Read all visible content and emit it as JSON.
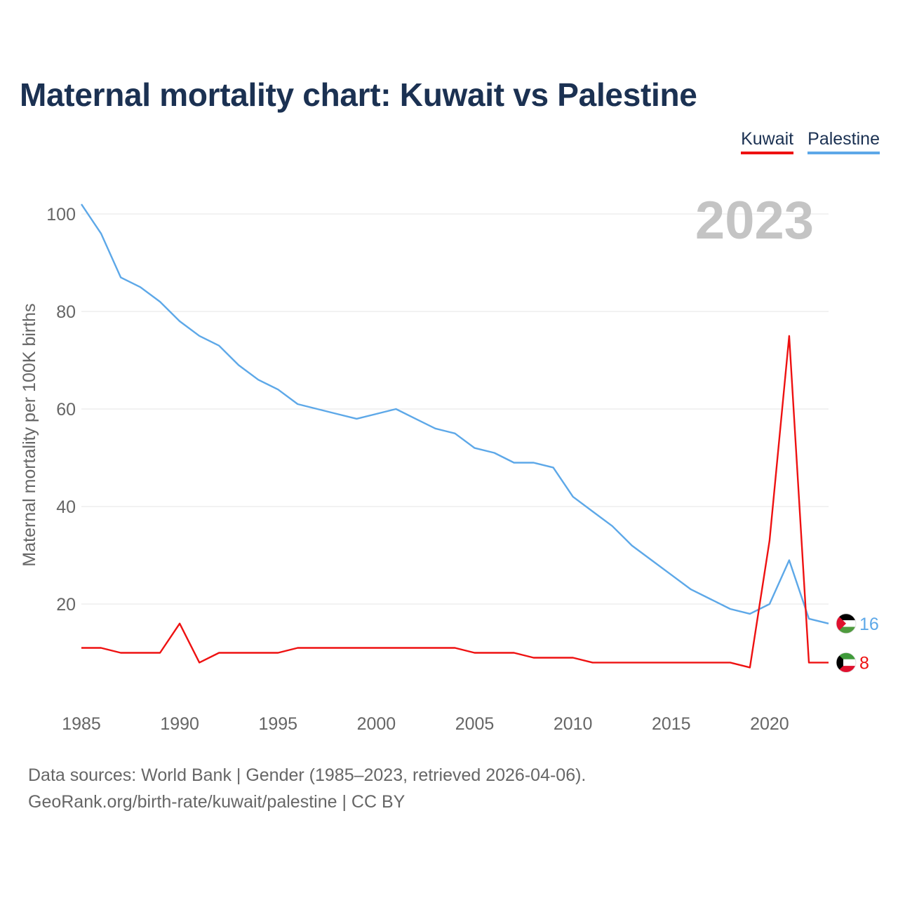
{
  "title": "Maternal mortality chart: Kuwait vs Palestine",
  "legend": [
    {
      "label": "Kuwait",
      "color": "#ee1111"
    },
    {
      "label": "Palestine",
      "color": "#5da8e8"
    }
  ],
  "year_label": "2023",
  "source": {
    "line1": "Data sources: World Bank | Gender (1985–2023, retrieved 2026-04-06).",
    "line2": "GeoRank.org/birth-rate/kuwait/palestine | CC BY"
  },
  "chart_data": {
    "type": "line",
    "title": "Maternal mortality chart: Kuwait vs Palestine",
    "xlabel": "",
    "ylabel": "Maternal mortality per 100K births",
    "xlim": [
      1985,
      2023
    ],
    "ylim": [
      0,
      100
    ],
    "x_ticks": [
      1985,
      1990,
      1995,
      2000,
      2005,
      2010,
      2015,
      2020
    ],
    "y_ticks": [
      20,
      40,
      60,
      80,
      100
    ],
    "grid": true,
    "x": [
      1985,
      1986,
      1987,
      1988,
      1989,
      1990,
      1991,
      1992,
      1993,
      1994,
      1995,
      1996,
      1997,
      1998,
      1999,
      2000,
      2001,
      2002,
      2003,
      2004,
      2005,
      2006,
      2007,
      2008,
      2009,
      2010,
      2011,
      2012,
      2013,
      2014,
      2015,
      2016,
      2017,
      2018,
      2019,
      2020,
      2021,
      2022,
      2023
    ],
    "series": [
      {
        "name": "Kuwait",
        "color": "#ee1111",
        "end_label": "8",
        "values": [
          11,
          11,
          10,
          10,
          10,
          16,
          8,
          10,
          10,
          10,
          10,
          11,
          11,
          11,
          11,
          11,
          11,
          11,
          11,
          11,
          10,
          10,
          10,
          9,
          9,
          9,
          8,
          8,
          8,
          8,
          8,
          8,
          8,
          8,
          7,
          33,
          75,
          8,
          8
        ]
      },
      {
        "name": "Palestine",
        "color": "#5da8e8",
        "end_label": "16",
        "values": [
          102,
          96,
          87,
          85,
          82,
          78,
          75,
          73,
          69,
          66,
          64,
          61,
          60,
          59,
          58,
          59,
          60,
          58,
          56,
          55,
          52,
          51,
          49,
          49,
          48,
          42,
          39,
          36,
          32,
          29,
          26,
          23,
          21,
          19,
          18,
          20,
          29,
          17,
          16
        ]
      }
    ]
  }
}
